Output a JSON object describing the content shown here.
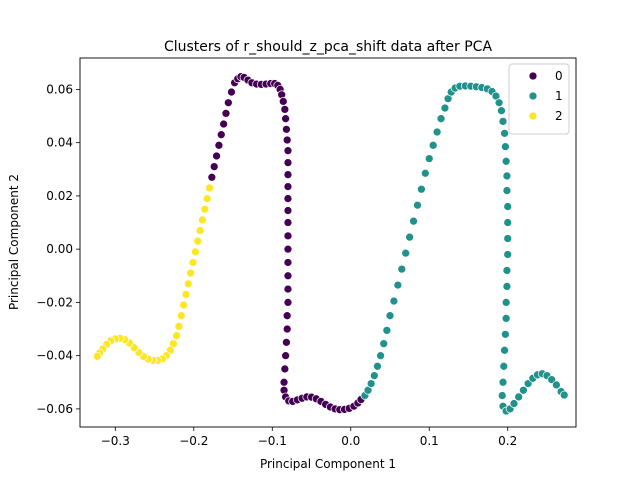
{
  "chart_data": {
    "type": "scatter",
    "title": "Clusters of r_should_z_pca_shift data after PCA",
    "xlabel": "Principal Component 1",
    "ylabel": "Principal Component 2",
    "xlim": [
      -0.345,
      0.287
    ],
    "ylim": [
      -0.0668,
      0.0718
    ],
    "xticks": [
      -0.3,
      -0.2,
      -0.1,
      0.0,
      0.1,
      0.2
    ],
    "xtick_labels": [
      "−0.3",
      "−0.2",
      "−0.1",
      "0.0",
      "0.1",
      "0.2"
    ],
    "yticks": [
      -0.06,
      -0.04,
      -0.02,
      0.0,
      0.02,
      0.04,
      0.06
    ],
    "ytick_labels": [
      "−0.06",
      "−0.04",
      "−0.02",
      "0.00",
      "0.02",
      "0.04",
      "0.06"
    ],
    "grid": false,
    "legend_position": "top-right",
    "marker_edge_color": "#ffffff",
    "series": [
      {
        "name": "0",
        "color": "#440154",
        "points": [
          [
            -0.148,
            0.0625
          ],
          [
            -0.144,
            0.064
          ],
          [
            -0.14,
            0.0648
          ],
          [
            -0.136,
            0.0645
          ],
          [
            -0.131,
            0.0635
          ],
          [
            -0.126,
            0.0625
          ],
          [
            -0.12,
            0.062
          ],
          [
            -0.114,
            0.0619
          ],
          [
            -0.108,
            0.062
          ],
          [
            -0.102,
            0.0622
          ],
          [
            -0.097,
            0.0622
          ],
          [
            -0.093,
            0.0615
          ],
          [
            -0.09,
            0.06
          ],
          [
            -0.088,
            0.058
          ],
          [
            -0.086,
            0.0555
          ],
          [
            -0.084,
            0.0525
          ],
          [
            -0.083,
            0.049
          ],
          [
            -0.082,
            0.045
          ],
          [
            -0.081,
            0.041
          ],
          [
            -0.08,
            0.037
          ],
          [
            -0.08,
            0.0325
          ],
          [
            -0.08,
            0.028
          ],
          [
            -0.08,
            0.0235
          ],
          [
            -0.08,
            0.019
          ],
          [
            -0.08,
            0.0145
          ],
          [
            -0.08,
            0.01
          ],
          [
            -0.08,
            0.005
          ],
          [
            -0.08,
            0.0
          ],
          [
            -0.08,
            -0.005
          ],
          [
            -0.08,
            -0.01
          ],
          [
            -0.08,
            -0.015
          ],
          [
            -0.08,
            -0.02
          ],
          [
            -0.081,
            -0.025
          ],
          [
            -0.081,
            -0.03
          ],
          [
            -0.082,
            -0.035
          ],
          [
            -0.083,
            -0.04
          ],
          [
            -0.084,
            -0.045
          ],
          [
            -0.085,
            -0.05
          ],
          [
            -0.085,
            -0.053
          ],
          [
            -0.083,
            -0.0555
          ],
          [
            -0.079,
            -0.057
          ],
          [
            -0.074,
            -0.0572
          ],
          [
            -0.068,
            -0.0566
          ],
          [
            -0.062,
            -0.056
          ],
          [
            -0.056,
            -0.0555
          ],
          [
            -0.05,
            -0.0556
          ],
          [
            -0.044,
            -0.0562
          ],
          [
            -0.038,
            -0.0572
          ],
          [
            -0.032,
            -0.0583
          ],
          [
            -0.026,
            -0.0593
          ],
          [
            -0.02,
            -0.06
          ],
          [
            -0.014,
            -0.0603
          ],
          [
            -0.008,
            -0.0602
          ],
          [
            -0.002,
            -0.0598
          ],
          [
            0.004,
            -0.059
          ],
          [
            0.009,
            -0.0578
          ],
          [
            0.013,
            -0.0565
          ],
          [
            -0.152,
            0.059
          ],
          [
            -0.156,
            0.055
          ],
          [
            -0.159,
            0.051
          ],
          [
            -0.162,
            0.047
          ],
          [
            -0.165,
            0.043
          ],
          [
            -0.168,
            0.039
          ],
          [
            -0.171,
            0.035
          ],
          [
            -0.174,
            0.031
          ],
          [
            -0.177,
            0.027
          ]
        ]
      },
      {
        "name": "1",
        "color": "#21918c",
        "points": [
          [
            0.018,
            -0.055
          ],
          [
            0.022,
            -0.053
          ],
          [
            0.026,
            -0.0505
          ],
          [
            0.03,
            -0.0475
          ],
          [
            0.034,
            -0.044
          ],
          [
            0.038,
            -0.04
          ],
          [
            0.042,
            -0.0355
          ],
          [
            0.046,
            -0.0305
          ],
          [
            0.05,
            -0.025
          ],
          [
            0.055,
            -0.0195
          ],
          [
            0.06,
            -0.0135
          ],
          [
            0.065,
            -0.0075
          ],
          [
            0.07,
            -0.0015
          ],
          [
            0.075,
            0.0045
          ],
          [
            0.08,
            0.0105
          ],
          [
            0.085,
            0.0165
          ],
          [
            0.09,
            0.0225
          ],
          [
            0.095,
            0.0285
          ],
          [
            0.1,
            0.034
          ],
          [
            0.105,
            0.039
          ],
          [
            0.11,
            0.044
          ],
          [
            0.115,
            0.049
          ],
          [
            0.12,
            0.053
          ],
          [
            0.124,
            0.0565
          ],
          [
            0.128,
            0.059
          ],
          [
            0.133,
            0.0605
          ],
          [
            0.139,
            0.0612
          ],
          [
            0.146,
            0.0613
          ],
          [
            0.153,
            0.0612
          ],
          [
            0.16,
            0.061
          ],
          [
            0.167,
            0.0607
          ],
          [
            0.174,
            0.0602
          ],
          [
            0.18,
            0.0592
          ],
          [
            0.185,
            0.0575
          ],
          [
            0.189,
            0.055
          ],
          [
            0.192,
            0.052
          ],
          [
            0.194,
            0.048
          ],
          [
            0.196,
            0.0435
          ],
          [
            0.197,
            0.0385
          ],
          [
            0.198,
            0.033
          ],
          [
            0.199,
            0.0275
          ],
          [
            0.199,
            0.022
          ],
          [
            0.2,
            0.016
          ],
          [
            0.2,
            0.01
          ],
          [
            0.2,
            0.004
          ],
          [
            0.2,
            -0.002
          ],
          [
            0.199,
            -0.008
          ],
          [
            0.199,
            -0.014
          ],
          [
            0.198,
            -0.02
          ],
          [
            0.198,
            -0.026
          ],
          [
            0.197,
            -0.032
          ],
          [
            0.196,
            -0.038
          ],
          [
            0.195,
            -0.044
          ],
          [
            0.194,
            -0.05
          ],
          [
            0.193,
            -0.055
          ],
          [
            0.194,
            -0.059
          ],
          [
            0.198,
            -0.0608
          ],
          [
            0.203,
            -0.06
          ],
          [
            0.208,
            -0.058
          ],
          [
            0.214,
            -0.0555
          ],
          [
            0.22,
            -0.053
          ],
          [
            0.226,
            -0.0505
          ],
          [
            0.232,
            -0.0485
          ],
          [
            0.238,
            -0.0472
          ],
          [
            0.244,
            -0.0468
          ],
          [
            0.25,
            -0.0475
          ],
          [
            0.256,
            -0.049
          ],
          [
            0.262,
            -0.051
          ],
          [
            0.268,
            -0.0535
          ],
          [
            0.272,
            -0.0548
          ]
        ]
      },
      {
        "name": "2",
        "color": "#fde725",
        "points": [
          [
            -0.18,
            0.023
          ],
          [
            -0.183,
            0.019
          ],
          [
            -0.186,
            0.015
          ],
          [
            -0.189,
            0.011
          ],
          [
            -0.192,
            0.007
          ],
          [
            -0.195,
            0.003
          ],
          [
            -0.198,
            -0.001
          ],
          [
            -0.201,
            -0.005
          ],
          [
            -0.204,
            -0.009
          ],
          [
            -0.207,
            -0.013
          ],
          [
            -0.21,
            -0.017
          ],
          [
            -0.213,
            -0.021
          ],
          [
            -0.216,
            -0.025
          ],
          [
            -0.219,
            -0.029
          ],
          [
            -0.222,
            -0.0325
          ],
          [
            -0.226,
            -0.0355
          ],
          [
            -0.23,
            -0.038
          ],
          [
            -0.235,
            -0.04
          ],
          [
            -0.24,
            -0.0412
          ],
          [
            -0.246,
            -0.0418
          ],
          [
            -0.252,
            -0.0418
          ],
          [
            -0.258,
            -0.0413
          ],
          [
            -0.264,
            -0.0403
          ],
          [
            -0.27,
            -0.0388
          ],
          [
            -0.276,
            -0.037
          ],
          [
            -0.282,
            -0.0352
          ],
          [
            -0.288,
            -0.034
          ],
          [
            -0.294,
            -0.0335
          ],
          [
            -0.3,
            -0.0337
          ],
          [
            -0.306,
            -0.0345
          ],
          [
            -0.311,
            -0.0358
          ],
          [
            -0.316,
            -0.0375
          ],
          [
            -0.32,
            -0.039
          ],
          [
            -0.323,
            -0.0403
          ]
        ]
      }
    ]
  }
}
